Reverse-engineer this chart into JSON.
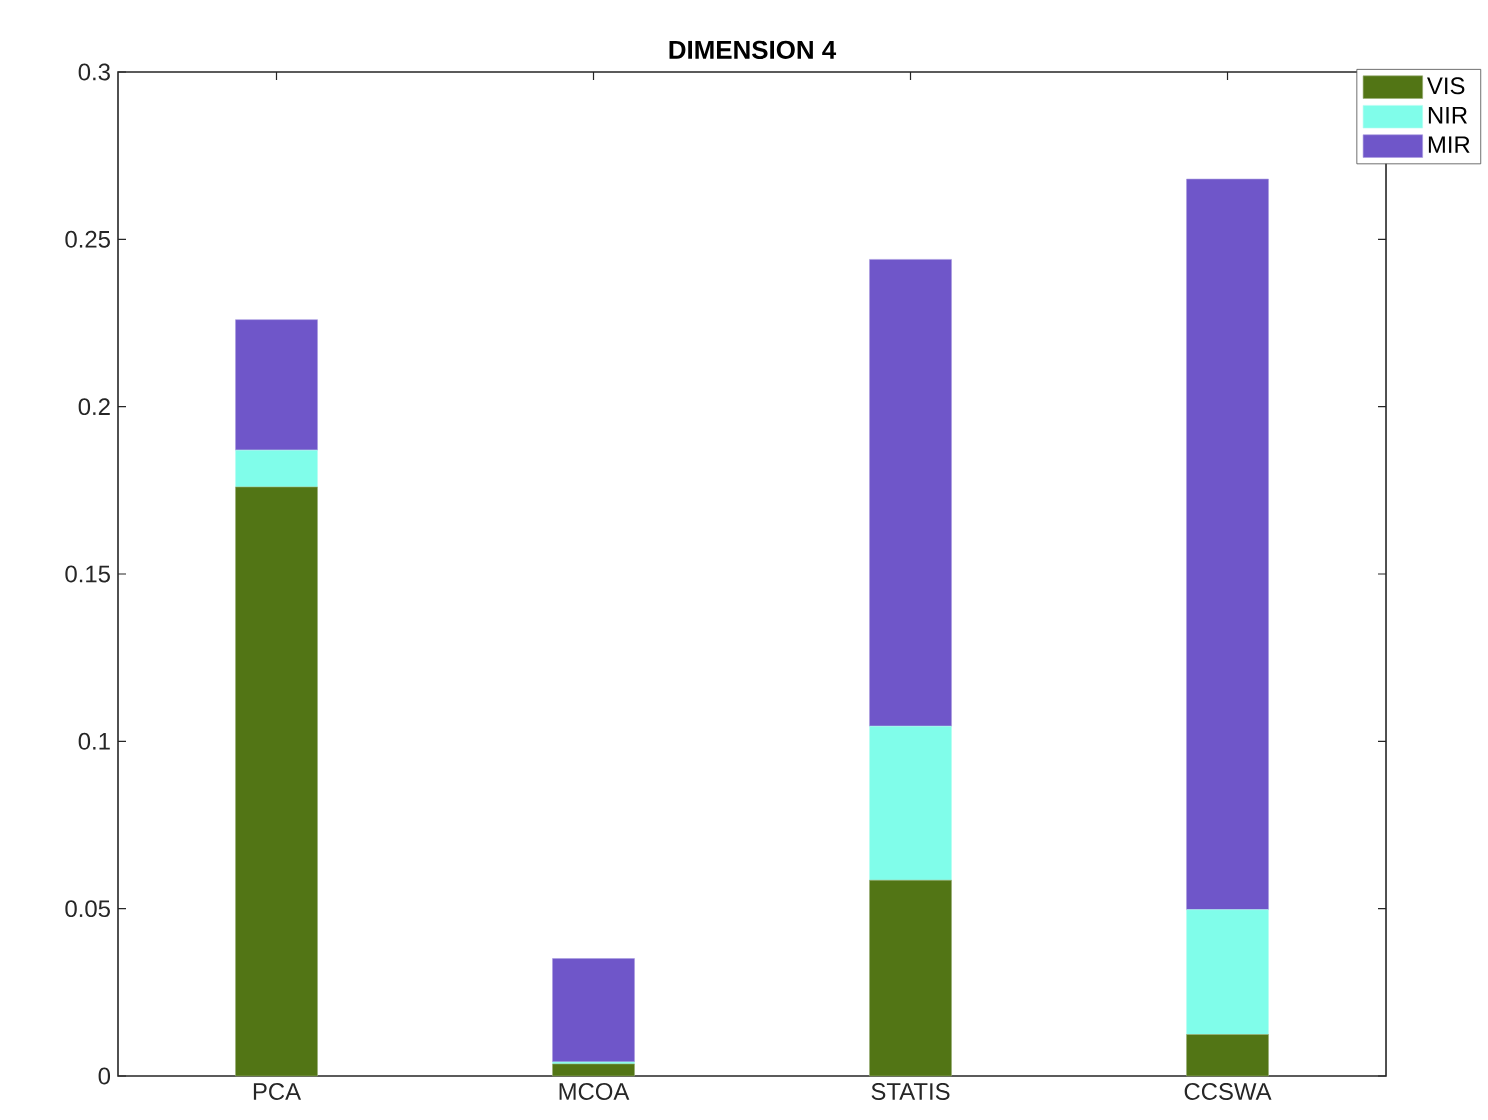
{
  "chart_data": {
    "type": "bar",
    "title": "DIMENSION 4",
    "stacked": true,
    "categories": [
      "PCA",
      "MCOA",
      "STATIS",
      "CCSWA"
    ],
    "series": [
      {
        "name": "VIS",
        "color": "#527515",
        "values": [
          0.176,
          0.0036,
          0.0585,
          0.0124
        ]
      },
      {
        "name": "NIR",
        "color": "#80fdea",
        "values": [
          0.011,
          0.0006,
          0.046,
          0.0373
        ]
      },
      {
        "name": "MIR",
        "color": "#6f56c9",
        "values": [
          0.039,
          0.0309,
          0.1395,
          0.2183
        ]
      }
    ],
    "ylim": [
      0,
      0.3
    ],
    "yticks": [
      0,
      0.05,
      0.1,
      0.15,
      0.2,
      0.25,
      0.3
    ],
    "grid": false,
    "legend": "top right"
  }
}
